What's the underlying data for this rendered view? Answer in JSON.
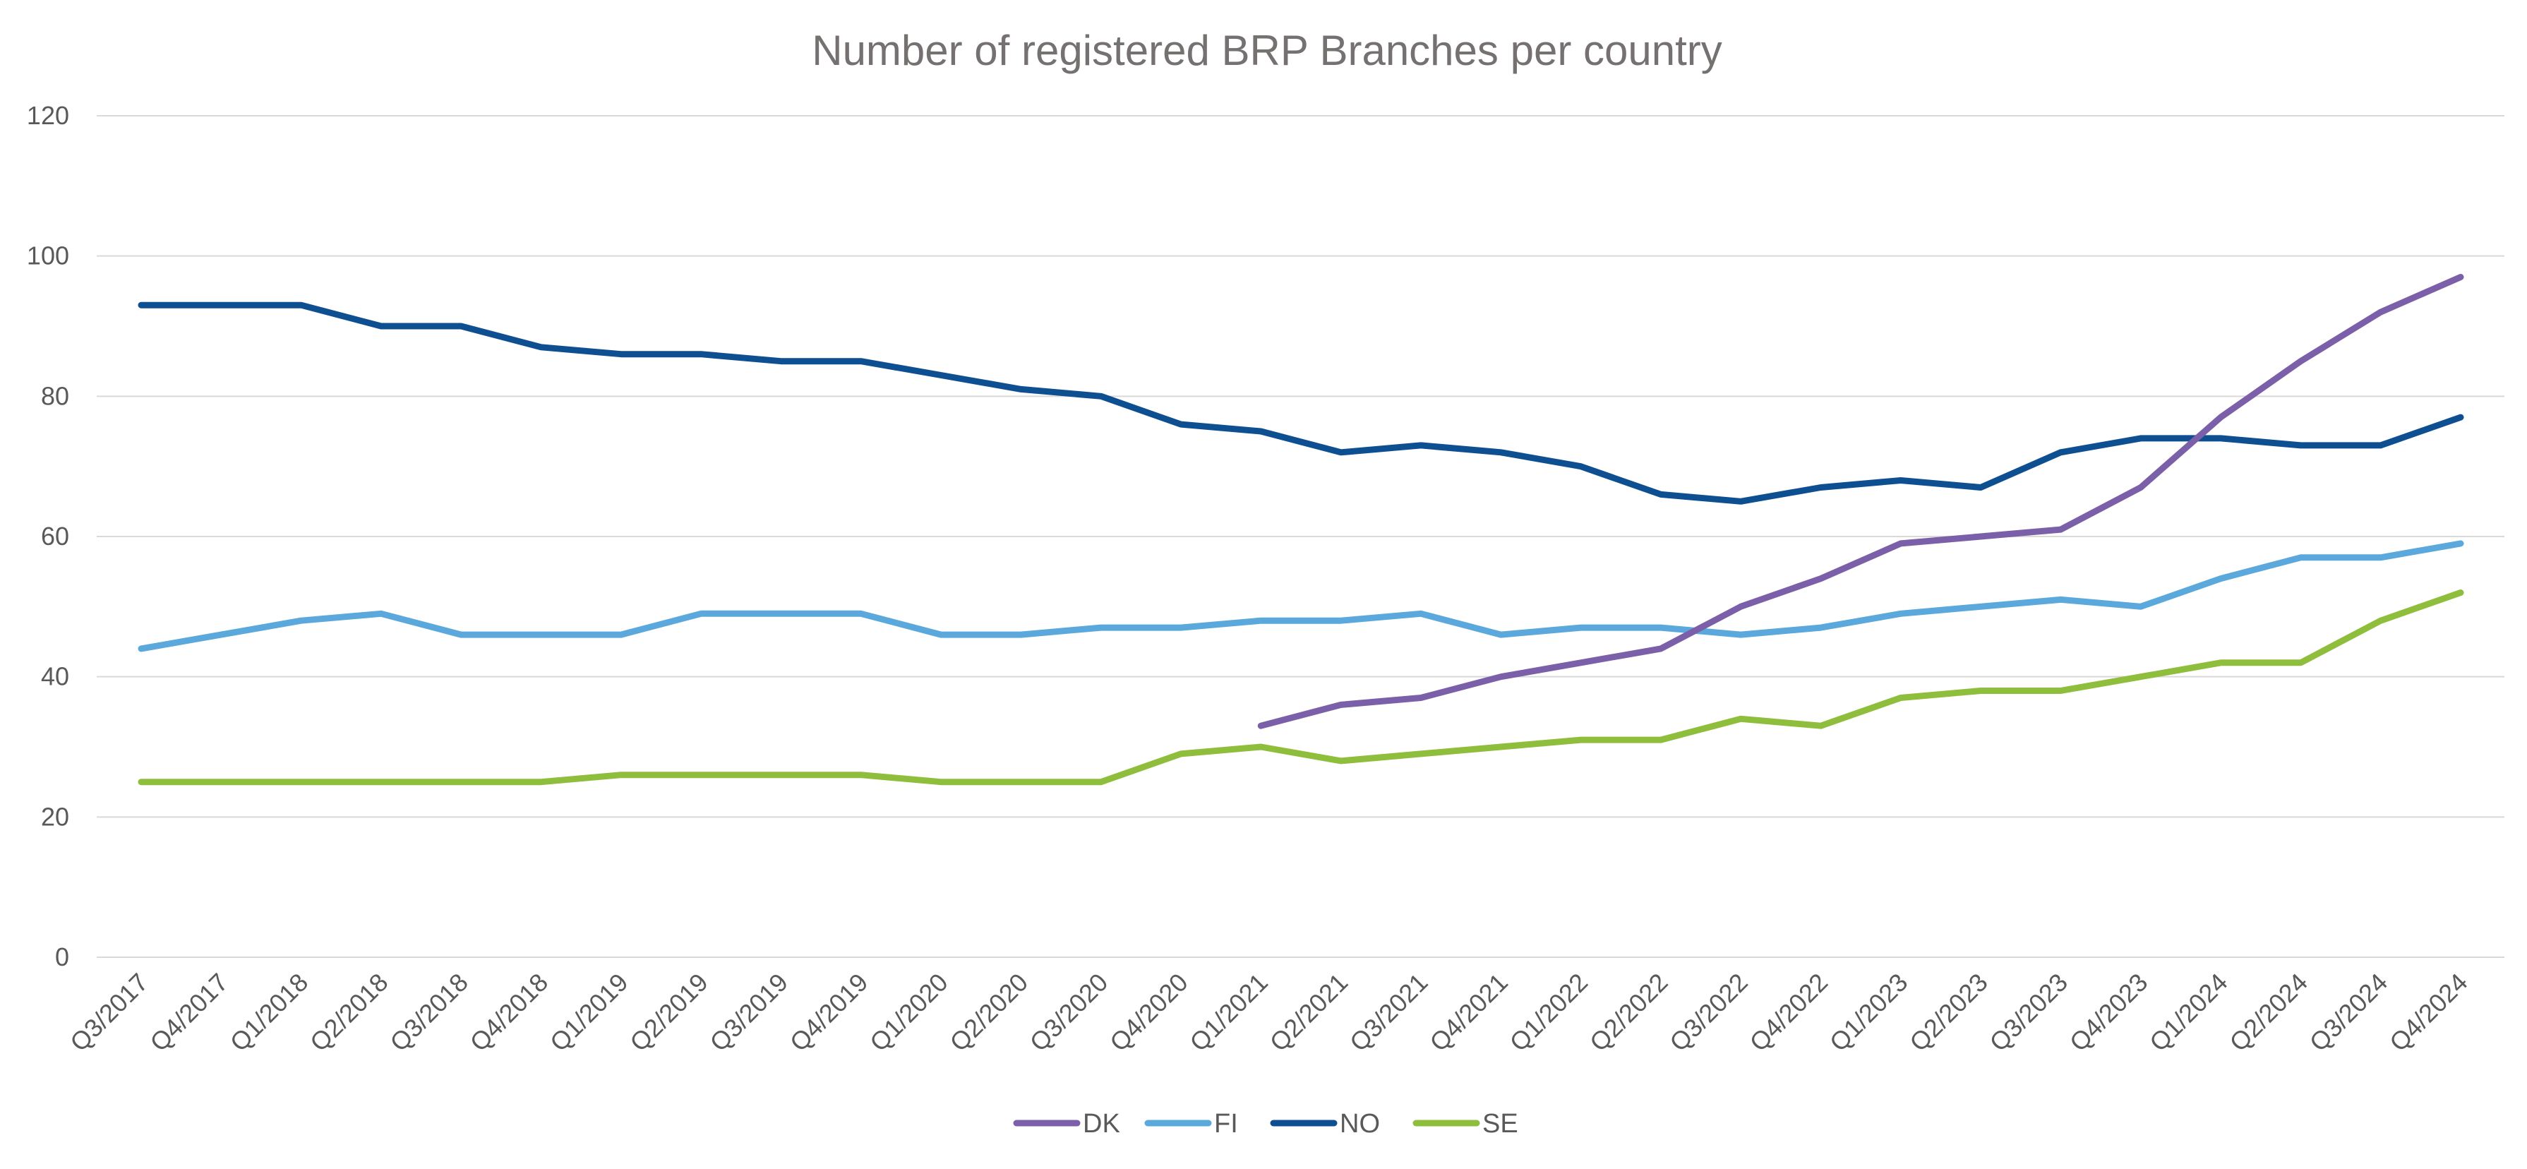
{
  "chart_data": {
    "type": "line",
    "title": "Number of registered BRP Branches per country",
    "xlabel": "",
    "ylabel": "",
    "ylim": [
      0,
      120
    ],
    "yticks": [
      0,
      20,
      40,
      60,
      80,
      100,
      120
    ],
    "grid": true,
    "legend_position": "bottom",
    "categories": [
      "Q3/2017",
      "Q4/2017",
      "Q1/2018",
      "Q2/2018",
      "Q3/2018",
      "Q4/2018",
      "Q1/2019",
      "Q2/2019",
      "Q3/2019",
      "Q4/2019",
      "Q1/2020",
      "Q2/2020",
      "Q3/2020",
      "Q4/2020",
      "Q1/2021",
      "Q2/2021",
      "Q3/2021",
      "Q4/2021",
      "Q1/2022",
      "Q2/2022",
      "Q3/2022",
      "Q4/2022",
      "Q1/2023",
      "Q2/2023",
      "Q3/2023",
      "Q4/2023",
      "Q1/2024",
      "Q2/2024",
      "Q3/2024",
      "Q4/2024"
    ],
    "series": [
      {
        "name": "DK",
        "color": "#7b5fa8",
        "values": [
          null,
          null,
          null,
          null,
          null,
          null,
          null,
          null,
          null,
          null,
          null,
          null,
          null,
          null,
          33,
          36,
          37,
          40,
          42,
          44,
          50,
          54,
          59,
          60,
          61,
          67,
          77,
          85,
          92,
          97
        ]
      },
      {
        "name": "FI",
        "color": "#5ba8dc",
        "values": [
          44,
          46,
          48,
          49,
          46,
          46,
          46,
          49,
          49,
          49,
          46,
          46,
          47,
          47,
          48,
          48,
          49,
          46,
          47,
          47,
          46,
          47,
          49,
          50,
          51,
          50,
          54,
          57,
          57,
          59
        ]
      },
      {
        "name": "NO",
        "color": "#0e4f92",
        "values": [
          93,
          93,
          93,
          90,
          90,
          87,
          86,
          86,
          85,
          85,
          83,
          81,
          80,
          76,
          75,
          72,
          73,
          72,
          70,
          66,
          65,
          67,
          68,
          67,
          72,
          74,
          74,
          73,
          73,
          77
        ]
      },
      {
        "name": "SE",
        "color": "#8fbd3c",
        "values": [
          25,
          25,
          25,
          25,
          25,
          25,
          26,
          26,
          26,
          26,
          25,
          25,
          25,
          29,
          30,
          28,
          29,
          30,
          31,
          31,
          34,
          33,
          37,
          38,
          38,
          40,
          42,
          42,
          48,
          52
        ]
      }
    ]
  }
}
